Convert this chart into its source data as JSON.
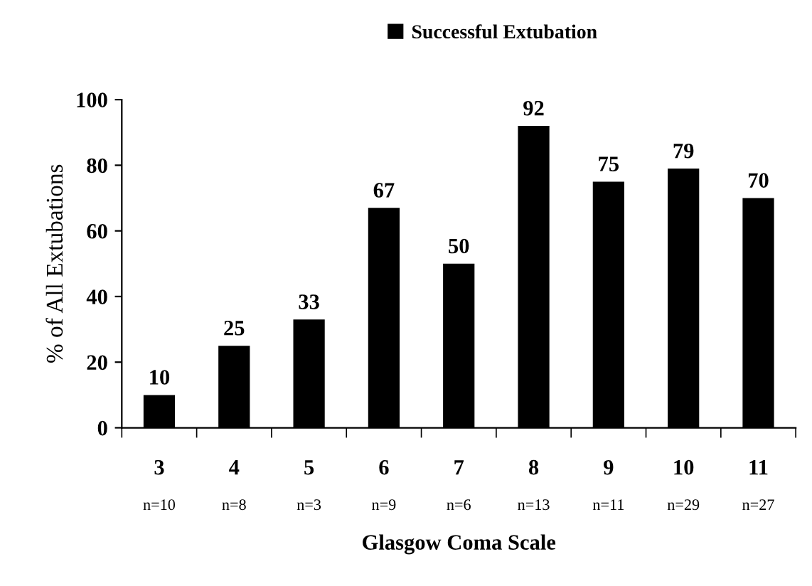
{
  "chart_data": {
    "type": "bar",
    "xlabel": "Glasgow Coma Scale",
    "ylabel": "% of All Extubations",
    "categories": [
      "3",
      "4",
      "5",
      "6",
      "7",
      "8",
      "9",
      "10",
      "11"
    ],
    "series": [
      {
        "name": "Successful Extubation",
        "color": "#000000",
        "values": [
          10,
          25,
          33,
          67,
          50,
          92,
          75,
          79,
          70
        ]
      }
    ],
    "annotations": [
      "n=10",
      "n=8",
      "n=3",
      "n=9",
      "n=6",
      "n=13",
      "n=11",
      "n=29",
      "n=27"
    ],
    "ylim": [
      0,
      100
    ],
    "yticks": [
      0,
      20,
      40,
      60,
      80,
      100
    ],
    "data_labels": true,
    "legend": "top",
    "grid": false
  }
}
